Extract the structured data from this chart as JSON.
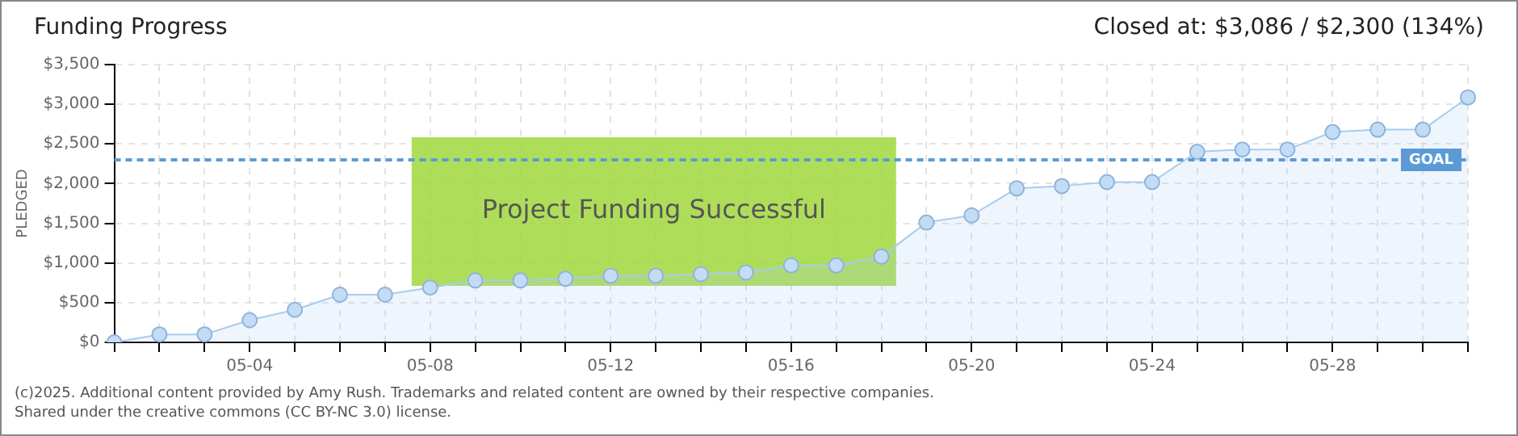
{
  "chart_data": {
    "type": "area",
    "title": "Funding Progress",
    "subtitle": "Closed at: $3,086 / $2,300 (134%)",
    "ylabel": "PLEDGED",
    "categories": [
      null,
      null,
      null,
      "05-04",
      null,
      null,
      null,
      "05-08",
      null,
      null,
      null,
      "05-12",
      null,
      null,
      null,
      "05-16",
      null,
      null,
      null,
      "05-20",
      null,
      null,
      null,
      "05-24",
      null,
      null,
      null,
      "05-28",
      null,
      null,
      null
    ],
    "series": [
      {
        "color": "#a9cbee",
        "values": [
          0,
          100,
          100,
          280,
          410,
          600,
          600,
          690,
          780,
          780,
          800,
          840,
          840,
          860,
          880,
          970,
          970,
          1080,
          1510,
          1600,
          1940,
          1970,
          2020,
          2020,
          2400,
          2430,
          2430,
          2650,
          2680,
          2680,
          3086
        ]
      }
    ],
    "ylim": [
      0,
      3500
    ],
    "yticks": [
      {
        "value": 0,
        "label": "$0"
      },
      {
        "value": 500,
        "label": "$500"
      },
      {
        "value": 1000,
        "label": "$1,000"
      },
      {
        "value": 1500,
        "label": "$1,500"
      },
      {
        "value": 2000,
        "label": "$2,000"
      },
      {
        "value": 2500,
        "label": "$2,500"
      },
      {
        "value": 3000,
        "label": "$3,000"
      },
      {
        "value": 3500,
        "label": "$3,500"
      }
    ],
    "ref_lines": [
      {
        "axis": "y",
        "value": 2300,
        "label": "GOAL",
        "color": "#5b9bd5",
        "line_style": "dashed"
      }
    ],
    "annotations": [
      "Project Funding Successful",
      "(c)2025. Additional content provided by Amy Rush. Trademarks and related content are owned by their respective companies.",
      "Shared under the creative commons (CC BY-NC 3.0) license."
    ],
    "grid": true,
    "legend": false,
    "marker": "circle",
    "line_style": "solid"
  }
}
